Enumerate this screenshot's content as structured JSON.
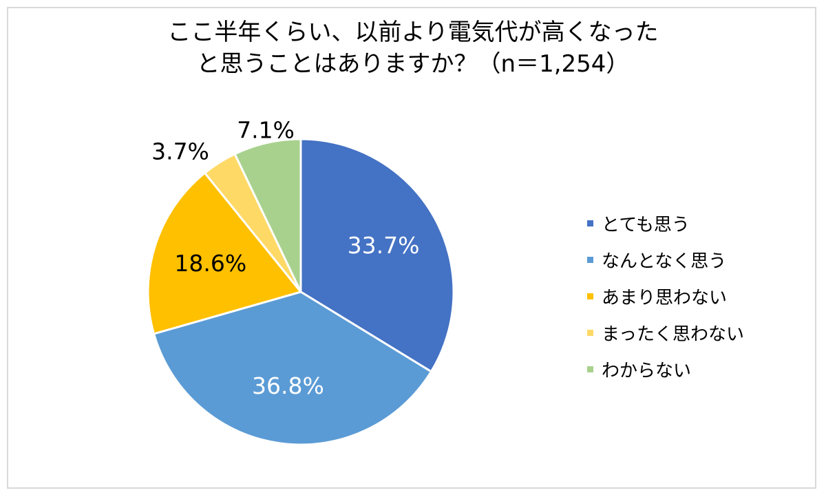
{
  "title_lines": [
    "ここ半年くらい、以前より電気代が高くなった",
    "と思うことはありますか？（n＝1,254）"
  ],
  "chart_data": {
    "type": "pie",
    "title": "ここ半年くらい、以前より電気代が高くなったと思うことはありますか？（n＝1,254）",
    "n": "1,254",
    "slices": [
      {
        "label": "とても思う",
        "value": 33.7,
        "display": "33.7%",
        "color": "#4472c4",
        "label_color": "#ffffff",
        "label_pos": "inside"
      },
      {
        "label": "なんとなく思う",
        "value": 36.8,
        "display": "36.8%",
        "color": "#5b9bd5",
        "label_color": "#ffffff",
        "label_pos": "inside"
      },
      {
        "label": "あまり思わない",
        "value": 18.6,
        "display": "18.6%",
        "color": "#ffc000",
        "label_color": "#000000",
        "label_pos": "inside"
      },
      {
        "label": "まったく思わない",
        "value": 3.7,
        "display": "3.7%",
        "color": "#ffd966",
        "label_color": "#000000",
        "label_pos": "outside"
      },
      {
        "label": "わからない",
        "value": 7.1,
        "display": "7.1%",
        "color": "#a9d18e",
        "label_color": "#000000",
        "label_pos": "outside"
      }
    ],
    "start": "12 o'clock",
    "direction": "clockwise",
    "legend_position": "right"
  }
}
